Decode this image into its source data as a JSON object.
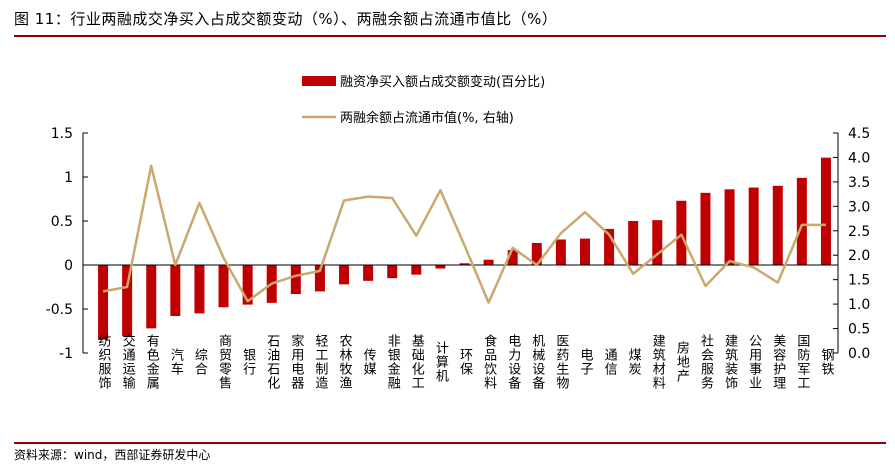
{
  "title": "图 11：行业两融成交净买入占成交额变动（%）、两融余额占流通市值比（%）",
  "source": "资料来源：wind，西部证券研发中心",
  "chart_data": {
    "type": "bar+line",
    "series": [
      {
        "name": "融资净买入额占成交额变动(百分比)",
        "type": "bar",
        "axis": "left",
        "color": "#c00000",
        "values": [
          -0.85,
          -0.81,
          -0.72,
          -0.58,
          -0.55,
          -0.48,
          -0.45,
          -0.43,
          -0.33,
          -0.3,
          -0.22,
          -0.18,
          -0.15,
          -0.11,
          -0.04,
          0.02,
          0.06,
          0.17,
          0.25,
          0.29,
          0.3,
          0.41,
          0.5,
          0.51,
          0.73,
          0.82,
          0.86,
          0.88,
          0.9,
          0.99,
          1.22
        ]
      },
      {
        "name": "两融余额占流通市值(%, 右轴)",
        "type": "line",
        "axis": "right",
        "color": "#c9a96e",
        "values": [
          1.26,
          1.35,
          3.83,
          1.8,
          3.07,
          1.95,
          1.06,
          1.42,
          1.58,
          1.68,
          3.12,
          3.2,
          3.17,
          2.4,
          3.33,
          2.2,
          1.03,
          2.15,
          1.8,
          2.45,
          2.88,
          2.42,
          1.62,
          2.02,
          2.42,
          1.37,
          1.88,
          1.75,
          1.44,
          2.62,
          2.62
        ]
      }
    ],
    "categories": [
      "纺织服饰",
      "交通运输",
      "有色金属",
      "汽车",
      "综合",
      "商贸零售",
      "银行",
      "石油石化",
      "家用电器",
      "轻工制造",
      "农林牧渔",
      "传媒",
      "非银金融",
      "基础化工",
      "计算机",
      "环保",
      "食品饮料",
      "电力设备",
      "机械设备",
      "医药生物",
      "电子",
      "通信",
      "煤炭",
      "建筑材料",
      "房地产",
      "社会服务",
      "建筑装饰",
      "公用事业",
      "美容护理",
      "国防军工",
      "钢铁"
    ],
    "y_left": {
      "min": -1,
      "max": 1.5,
      "ticks": [
        "-1",
        "-0.5",
        "0",
        "0.5",
        "1",
        "1.5"
      ]
    },
    "y_right": {
      "min": 0,
      "max": 4.5,
      "ticks": [
        "0.0",
        "0.5",
        "1.0",
        "1.5",
        "2.0",
        "2.5",
        "3.0",
        "3.5",
        "4.0",
        "4.5"
      ]
    },
    "legend_position": "top-center",
    "grid": false
  }
}
